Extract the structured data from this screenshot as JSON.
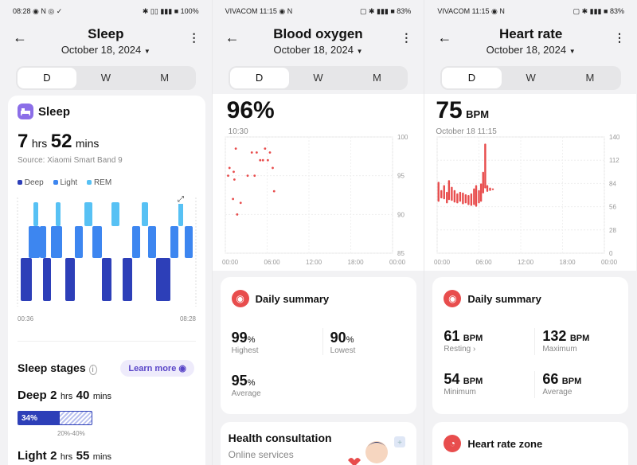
{
  "sleep": {
    "status_left": "08:28 ◉ N ◎ ✓",
    "status_right": "✱ ▯▯ ▮▮▮ ■ 100%",
    "title": "Sleep",
    "date": "October 18, 2024",
    "tabs": [
      "D",
      "W",
      "M"
    ],
    "card_title": "Sleep",
    "hours_value": "7",
    "hours_unit": "hrs",
    "mins_value": "52",
    "mins_unit": "mins",
    "source": "Source: Xiaomi Smart Band 9",
    "legend": [
      {
        "label": "Deep",
        "color": "#2d3fb8"
      },
      {
        "label": "Light",
        "color": "#3d86f0"
      },
      {
        "label": "REM",
        "color": "#57c1f4"
      }
    ],
    "time_start": "00:36",
    "time_end": "08:28",
    "stages_title": "Sleep stages",
    "learn_more": "Learn more",
    "deep_label": "Deep",
    "deep_hours": "2",
    "deep_hours_unit": "hrs",
    "deep_mins": "40",
    "deep_mins_unit": "mins",
    "deep_percent": "34%",
    "deep_range": "20%-40%",
    "deep_fill": 0.34,
    "light_label": "Light",
    "light_hours": "2",
    "light_hours_unit": "hrs",
    "light_mins": "55",
    "light_mins_unit": "mins"
  },
  "oxygen": {
    "status_left": "VIVACOM 11:15 ◉ N",
    "status_right": "▢ ✱ ▮▮▮ ■ 83%",
    "title": "Blood oxygen",
    "date": "October 18, 2024",
    "tabs": [
      "D",
      "W",
      "M"
    ],
    "value": "96%",
    "time": "10:30",
    "x_ticks": [
      "00:00",
      "06:00",
      "12:00",
      "18:00",
      "00:00"
    ],
    "y_ticks": [
      "100",
      "95",
      "90",
      "85"
    ],
    "summary_title": "Daily summary",
    "highest_value": "99",
    "highest_unit": "%",
    "highest_label": "Highest",
    "lowest_value": "90",
    "lowest_unit": "%",
    "lowest_label": "Lowest",
    "average_value": "95",
    "average_unit": "%",
    "average_label": "Average",
    "consult_title": "Health consultation",
    "consult_sub": "Online services"
  },
  "heart": {
    "status_left": "VIVACOM 11:15 ◉ N",
    "status_right": "▢ ✱ ▮▮▮ ■ 83%",
    "title": "Heart rate",
    "date": "October 18, 2024",
    "tabs": [
      "D",
      "W",
      "M"
    ],
    "value": "75",
    "unit": "BPM",
    "timestamp": "October 18 11:15",
    "x_ticks": [
      "00:00",
      "06:00",
      "12:00",
      "18:00",
      "00:00"
    ],
    "y_ticks": [
      "140",
      "112",
      "84",
      "56",
      "28",
      "0"
    ],
    "summary_title": "Daily summary",
    "resting_value": "61",
    "resting_unit": "BPM",
    "resting_label": "Resting",
    "max_value": "132",
    "max_unit": "BPM",
    "max_label": "Maximum",
    "min_value": "54",
    "min_unit": "BPM",
    "min_label": "Minimum",
    "avg_value": "66",
    "avg_unit": "BPM",
    "avg_label": "Average",
    "zone_title": "Heart rate zone"
  },
  "colors": {
    "red": "#e84d4d",
    "deep": "#2d3fb8",
    "light": "#3d86f0",
    "rem": "#57c1f4",
    "purple": "#8b6ee8"
  },
  "chart_data": [
    {
      "type": "scatter",
      "y_range": [
        85,
        100
      ],
      "x_range_hours": [
        0,
        24
      ],
      "points": [
        {
          "x": 0.4,
          "y": 95
        },
        {
          "x": 0.6,
          "y": 96
        },
        {
          "x": 1.1,
          "y": 92
        },
        {
          "x": 1.2,
          "y": 95.5
        },
        {
          "x": 1.3,
          "y": 94.5
        },
        {
          "x": 1.5,
          "y": 98.5
        },
        {
          "x": 1.7,
          "y": 90
        },
        {
          "x": 2.2,
          "y": 91.5
        },
        {
          "x": 3.2,
          "y": 95
        },
        {
          "x": 3.8,
          "y": 98
        },
        {
          "x": 4.2,
          "y": 95
        },
        {
          "x": 4.5,
          "y": 98
        },
        {
          "x": 5.0,
          "y": 97
        },
        {
          "x": 5.4,
          "y": 97
        },
        {
          "x": 5.7,
          "y": 98.5
        },
        {
          "x": 6.1,
          "y": 97
        },
        {
          "x": 6.4,
          "y": 98
        },
        {
          "x": 6.8,
          "y": 96
        },
        {
          "x": 7.0,
          "y": 93
        }
      ]
    },
    {
      "type": "bar",
      "y_range": [
        0,
        140
      ],
      "x_range_hours": [
        0,
        24
      ],
      "bars": [
        {
          "x": 0.2,
          "low": 62,
          "high": 86
        },
        {
          "x": 0.6,
          "low": 66,
          "high": 76
        },
        {
          "x": 1.0,
          "low": 65,
          "high": 82
        },
        {
          "x": 1.4,
          "low": 60,
          "high": 74
        },
        {
          "x": 1.7,
          "low": 64,
          "high": 88
        },
        {
          "x": 2.1,
          "low": 63,
          "high": 80
        },
        {
          "x": 2.5,
          "low": 61,
          "high": 76
        },
        {
          "x": 2.9,
          "low": 60,
          "high": 72
        },
        {
          "x": 3.3,
          "low": 62,
          "high": 74
        },
        {
          "x": 3.7,
          "low": 59,
          "high": 73
        },
        {
          "x": 4.1,
          "low": 60,
          "high": 71
        },
        {
          "x": 4.5,
          "low": 58,
          "high": 70
        },
        {
          "x": 4.9,
          "low": 57,
          "high": 72
        },
        {
          "x": 5.3,
          "low": 58,
          "high": 78
        },
        {
          "x": 5.6,
          "low": 56,
          "high": 82
        },
        {
          "x": 6.0,
          "low": 60,
          "high": 76
        },
        {
          "x": 6.3,
          "low": 62,
          "high": 84
        },
        {
          "x": 6.6,
          "low": 72,
          "high": 98
        },
        {
          "x": 6.9,
          "low": 78,
          "high": 132
        },
        {
          "x": 7.2,
          "low": 74,
          "high": 82
        },
        {
          "x": 7.6,
          "low": 75,
          "high": 79
        },
        {
          "x": 8.0,
          "low": 76,
          "high": 78
        }
      ]
    }
  ]
}
